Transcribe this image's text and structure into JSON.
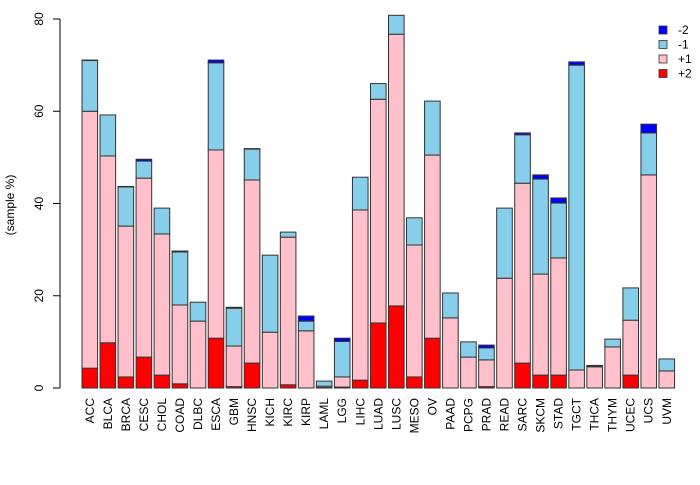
{
  "chart_data": {
    "type": "bar",
    "stacked": true,
    "title": "",
    "xlabel": "",
    "ylabel": "(sample %)",
    "ylim": [
      0,
      80
    ],
    "yticks": [
      0,
      20,
      40,
      60,
      80
    ],
    "grid": false,
    "legend_position": "top-right",
    "categories": [
      "ACC",
      "BLCA",
      "BRCA",
      "CESC",
      "CHOL",
      "COAD",
      "DLBC",
      "ESCA",
      "GBM",
      "HNSC",
      "KICH",
      "KIRC",
      "KIRP",
      "LAML",
      "LGG",
      "LIHC",
      "LUAD",
      "LUSC",
      "MESO",
      "OV",
      "PAAD",
      "PCPG",
      "PRAD",
      "READ",
      "SARC",
      "SKCM",
      "STAD",
      "TGCT",
      "THCA",
      "THYM",
      "UCEC",
      "UCS",
      "UVM"
    ],
    "series": [
      {
        "name": "+2",
        "color": "#ff0000",
        "values": [
          4.3,
          9.8,
          2.4,
          6.7,
          2.8,
          0.9,
          0,
          10.8,
          0.3,
          5.4,
          0,
          0.7,
          0,
          0.1,
          0.2,
          1.7,
          14.1,
          17.8,
          2.4,
          10.8,
          0,
          0,
          0.3,
          0,
          5.4,
          2.8,
          2.8,
          0,
          0,
          0,
          2.8,
          0,
          0
        ]
      },
      {
        "name": "+1",
        "color": "#ffc0cb",
        "values": [
          55.7,
          40.5,
          32.7,
          38.8,
          30.6,
          17.1,
          14.5,
          40.8,
          8.8,
          39.7,
          12.1,
          32.0,
          12.4,
          0.3,
          2.2,
          36.9,
          48.5,
          58.9,
          28.6,
          39.7,
          15.2,
          6.7,
          5.8,
          23.8,
          39.0,
          21.9,
          25.4,
          3.9,
          4.6,
          8.9,
          11.9,
          46.2,
          3.7
        ]
      },
      {
        "name": "-1",
        "color": "#87ceeb",
        "values": [
          11.0,
          8.9,
          8.5,
          3.7,
          5.6,
          11.5,
          4.1,
          18.9,
          8.2,
          6.7,
          16.7,
          1.1,
          2.1,
          1.1,
          7.7,
          7.1,
          3.4,
          4.1,
          5.9,
          11.7,
          5.4,
          3.3,
          2.6,
          15.2,
          10.5,
          20.6,
          11.9,
          66.1,
          0.1,
          1.7,
          7.0,
          9.1,
          2.6
        ]
      },
      {
        "name": "-2",
        "color": "#0000ff",
        "values": [
          0.1,
          0,
          0.1,
          0.4,
          0,
          0.2,
          0,
          0.6,
          0.2,
          0.1,
          0,
          0,
          1.1,
          0,
          0.7,
          0,
          0,
          0,
          0,
          0,
          0,
          0,
          0.6,
          0,
          0.4,
          0.9,
          1.1,
          0.7,
          0.2,
          0,
          0,
          1.9,
          0
        ]
      }
    ],
    "legend_order": [
      "-2",
      "-1",
      "+1",
      "+2"
    ]
  }
}
